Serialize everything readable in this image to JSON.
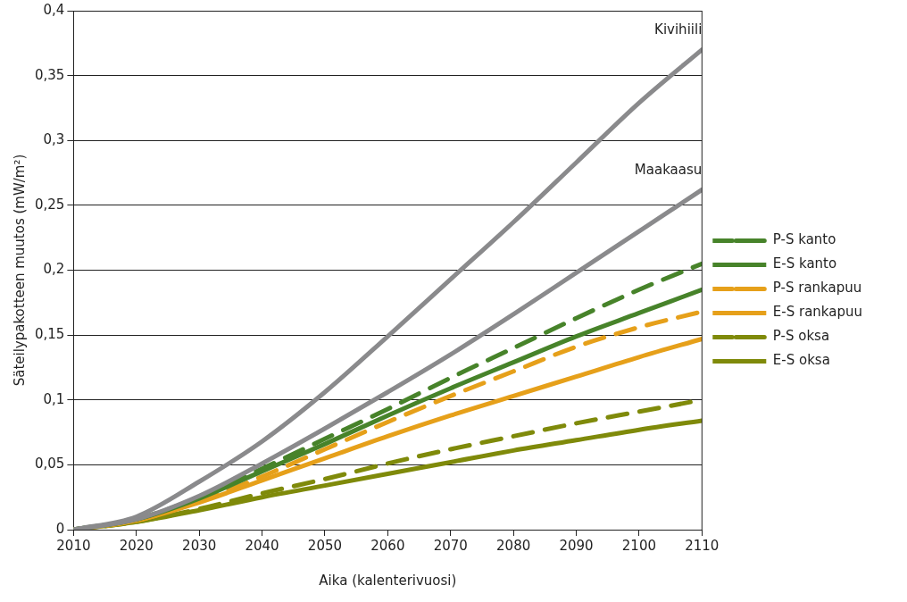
{
  "chart_data": {
    "type": "line",
    "ylabel": "Säteilypakotteen muutos (mW/m²)",
    "xlabel": "Aika (kalenterivuosi)",
    "x": [
      2010,
      2020,
      2030,
      2040,
      2050,
      2060,
      2070,
      2080,
      2090,
      2100,
      2110
    ],
    "xlim": [
      2010,
      2110
    ],
    "xticks": [
      2010,
      2020,
      2030,
      2040,
      2050,
      2060,
      2070,
      2080,
      2090,
      2100,
      2110
    ],
    "ylim": [
      0,
      0.4
    ],
    "yticks": [
      0,
      {
        "value": 0.05,
        "label": "0,05"
      },
      {
        "value": 0.1,
        "label": "0,1"
      },
      {
        "value": 0.15,
        "label": "0,15"
      },
      {
        "value": 0.2,
        "label": "0,2"
      },
      {
        "value": 0.25,
        "label": "0,25"
      },
      {
        "value": 0.3,
        "label": "0,3"
      },
      {
        "value": 0.35,
        "label": "0,35"
      },
      {
        "value": 0.4,
        "label": "0,4"
      }
    ],
    "grid": "y",
    "legend": "right",
    "marker": "none",
    "series": [
      {
        "color": "#8a8a8c",
        "line_style": "solid",
        "values": [
          0,
          0.01,
          0.037,
          0.068,
          0.106,
          0.149,
          0.193,
          0.237,
          0.283,
          0.329,
          0.37
        ]
      },
      {
        "color": "#8a8a8c",
        "line_style": "solid",
        "values": [
          0,
          0.008,
          0.026,
          0.051,
          0.078,
          0.106,
          0.135,
          0.166,
          0.198,
          0.23,
          0.262
        ]
      },
      {
        "name": "P-S kanto",
        "color": "#47832a",
        "line_style": "dashed",
        "values": [
          0,
          0.008,
          0.025,
          0.047,
          0.07,
          0.093,
          0.117,
          0.14,
          0.163,
          0.185,
          0.205
        ]
      },
      {
        "name": "E-S kanto",
        "color": "#47832a",
        "line_style": "solid",
        "values": [
          0,
          0.008,
          0.024,
          0.045,
          0.066,
          0.088,
          0.109,
          0.129,
          0.149,
          0.167,
          0.185
        ]
      },
      {
        "name": "P-S rankapuu",
        "color": "#e6a01a",
        "line_style": "dashed",
        "values": [
          0,
          0.007,
          0.022,
          0.041,
          0.062,
          0.083,
          0.103,
          0.122,
          0.141,
          0.156,
          0.168
        ]
      },
      {
        "name": "E-S rankapuu",
        "color": "#e6a01a",
        "line_style": "solid",
        "values": [
          0,
          0.007,
          0.021,
          0.038,
          0.055,
          0.072,
          0.088,
          0.103,
          0.118,
          0.133,
          0.147
        ]
      },
      {
        "name": "P-S oksa",
        "color": "#7f8a0a",
        "line_style": "dashed",
        "values": [
          0,
          0.006,
          0.016,
          0.028,
          0.039,
          0.051,
          0.062,
          0.072,
          0.082,
          0.091,
          0.1
        ]
      },
      {
        "name": "E-S oksa",
        "color": "#7f8a0a",
        "line_style": "solid",
        "values": [
          0,
          0.006,
          0.015,
          0.025,
          0.034,
          0.043,
          0.052,
          0.061,
          0.069,
          0.077,
          0.084
        ]
      }
    ],
    "annotations": [
      {
        "text": "Kivihiili",
        "x": 2110,
        "y": 0.37
      },
      {
        "text": "Maakaasu",
        "x": 2110,
        "y": 0.262
      }
    ]
  }
}
